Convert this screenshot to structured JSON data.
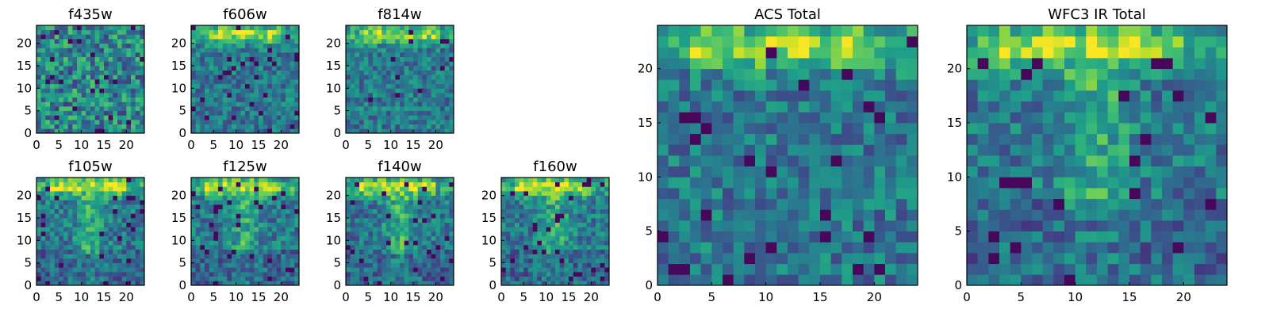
{
  "figure": {
    "colormap": "viridis",
    "colors": {
      "low": "#440154",
      "mid": "#21918c",
      "high": "#fde725",
      "frame": "#000000",
      "background": "#ffffff"
    }
  },
  "chart_data": [
    {
      "type": "heatmap",
      "title": "f435w",
      "grid_size": [
        24,
        24
      ],
      "xlim": [
        0,
        24
      ],
      "ylim": [
        0,
        24
      ],
      "xticks": [
        "0",
        "5",
        "10",
        "15",
        "20"
      ],
      "yticks": [
        "0",
        "5",
        "10",
        "15",
        "20"
      ],
      "description_pattern": "noise",
      "bright_band": false
    },
    {
      "type": "heatmap",
      "title": "f606w",
      "grid_size": [
        24,
        24
      ],
      "xlim": [
        0,
        24
      ],
      "ylim": [
        0,
        24
      ],
      "xticks": [
        "0",
        "5",
        "10",
        "15",
        "20"
      ],
      "yticks": [
        "0",
        "5",
        "10",
        "15",
        "20"
      ],
      "description_pattern": "bright-top-band",
      "bright_band": true
    },
    {
      "type": "heatmap",
      "title": "f814w",
      "grid_size": [
        24,
        24
      ],
      "xlim": [
        0,
        24
      ],
      "ylim": [
        0,
        24
      ],
      "xticks": [
        "0",
        "5",
        "10",
        "15",
        "20"
      ],
      "yticks": [
        "0",
        "5",
        "10",
        "15",
        "20"
      ],
      "description_pattern": "bright-top-band",
      "bright_band": true
    },
    {
      "type": "heatmap",
      "title": "f105w",
      "grid_size": [
        24,
        24
      ],
      "xlim": [
        0,
        24
      ],
      "ylim": [
        0,
        24
      ],
      "xticks": [
        "0",
        "5",
        "10",
        "15",
        "20"
      ],
      "yticks": [
        "0",
        "5",
        "10",
        "15",
        "20"
      ],
      "description_pattern": "bright-top-band-stem",
      "bright_band": true
    },
    {
      "type": "heatmap",
      "title": "f125w",
      "grid_size": [
        24,
        24
      ],
      "xlim": [
        0,
        24
      ],
      "ylim": [
        0,
        24
      ],
      "xticks": [
        "0",
        "5",
        "10",
        "15",
        "20"
      ],
      "yticks": [
        "0",
        "5",
        "10",
        "15",
        "20"
      ],
      "description_pattern": "bright-top-band-stem",
      "bright_band": true
    },
    {
      "type": "heatmap",
      "title": "f140w",
      "grid_size": [
        24,
        24
      ],
      "xlim": [
        0,
        24
      ],
      "ylim": [
        0,
        24
      ],
      "xticks": [
        "0",
        "5",
        "10",
        "15",
        "20"
      ],
      "yticks": [
        "0",
        "5",
        "10",
        "15",
        "20"
      ],
      "description_pattern": "bright-top-band-stem",
      "bright_band": true
    },
    {
      "type": "heatmap",
      "title": "f160w",
      "grid_size": [
        24,
        24
      ],
      "xlim": [
        0,
        24
      ],
      "ylim": [
        0,
        24
      ],
      "xticks": [
        "0",
        "5",
        "10",
        "15",
        "20"
      ],
      "yticks": [
        "0",
        "5",
        "10",
        "15",
        "20"
      ],
      "description_pattern": "bright-top-band-stem",
      "bright_band": true
    },
    {
      "type": "heatmap",
      "title": "ACS Total",
      "grid_size": [
        24,
        24
      ],
      "xlim": [
        0,
        24
      ],
      "ylim": [
        0,
        24
      ],
      "xticks": [
        "0",
        "5",
        "10",
        "15",
        "20"
      ],
      "yticks": [
        "0",
        "5",
        "10",
        "15",
        "20"
      ],
      "description_pattern": "bright-top-band",
      "bright_band": true
    },
    {
      "type": "heatmap",
      "title": "WFC3 IR Total",
      "grid_size": [
        24,
        24
      ],
      "xlim": [
        0,
        24
      ],
      "ylim": [
        0,
        24
      ],
      "xticks": [
        "0",
        "5",
        "10",
        "15",
        "20"
      ],
      "yticks": [
        "0",
        "5",
        "10",
        "15",
        "20"
      ],
      "description_pattern": "bright-top-band-stem",
      "bright_band": true
    }
  ]
}
